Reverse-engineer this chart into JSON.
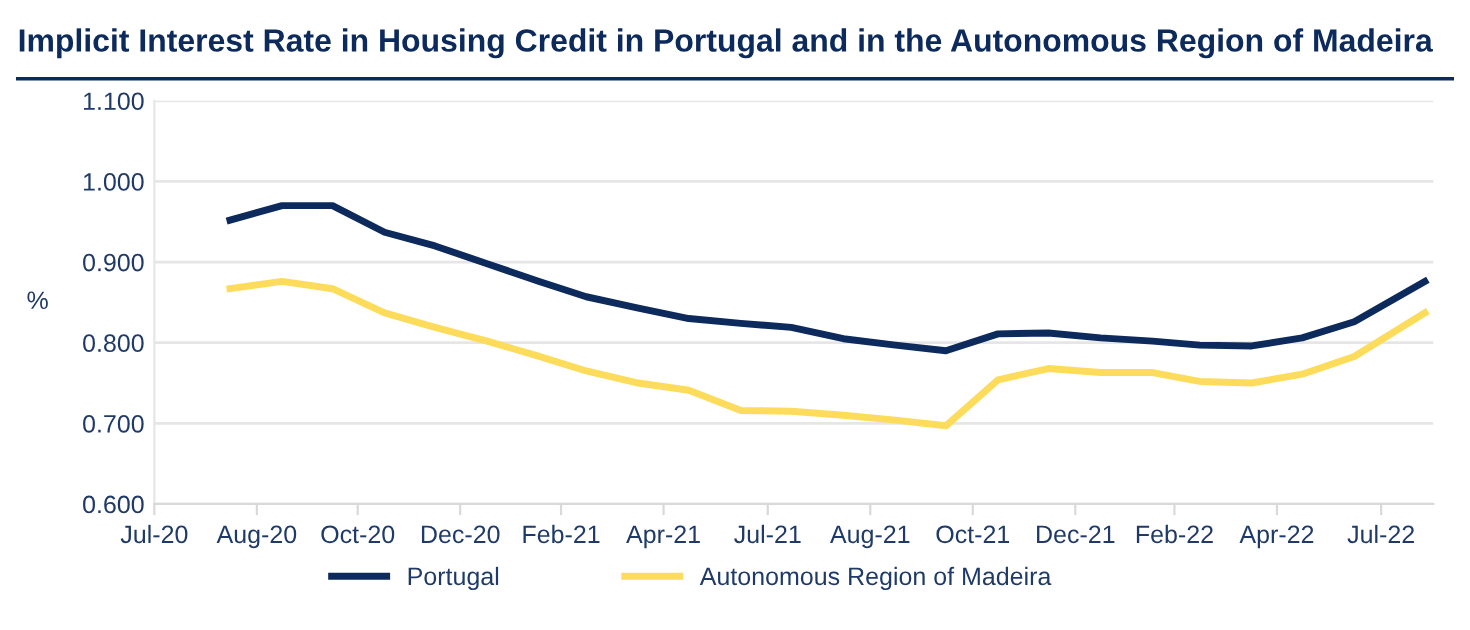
{
  "chart_data": {
    "type": "line",
    "title": "Implicit Interest Rate in Housing Credit in Portugal and in the Autonomous Region of Madeira",
    "ylabel": "%",
    "x": [
      "2020-08-15",
      "2020-09-15",
      "2020-10-15",
      "2020-11-15",
      "2020-12-15",
      "2021-01-15",
      "2021-02-15",
      "2021-03-15",
      "2021-04-15",
      "2021-05-15",
      "2021-06-15",
      "2021-07-15",
      "2021-08-15",
      "2021-09-15",
      "2021-10-15",
      "2021-11-15",
      "2021-12-15",
      "2022-01-15",
      "2022-02-15",
      "2022-03-15",
      "2022-04-15",
      "2022-05-15",
      "2022-06-15",
      "2022-07-27"
    ],
    "series": [
      {
        "name": "Portugal",
        "color": "#0d2a5c",
        "values": [
          0.952,
          0.97,
          0.97,
          0.937,
          0.92,
          0.898,
          0.876,
          0.857,
          0.843,
          0.83,
          0.824,
          0.819,
          0.805,
          0.797,
          0.79,
          0.811,
          0.812,
          0.806,
          0.802,
          0.797,
          0.796,
          0.806,
          0.826,
          0.876
        ]
      },
      {
        "name": "Autonomous Region of Madeira",
        "color": "#fcdc5a",
        "values": [
          0.867,
          0.876,
          0.867,
          0.837,
          0.819,
          0.802,
          0.783,
          0.765,
          0.75,
          0.741,
          0.716,
          0.715,
          0.71,
          0.704,
          0.697,
          0.754,
          0.768,
          0.763,
          0.763,
          0.752,
          0.75,
          0.761,
          0.783,
          0.837
        ]
      }
    ],
    "xlim": [
      "2020-07-01",
      "2022-08-01"
    ],
    "xticks": [
      {
        "value": "2020-07-01",
        "label": "Jul-20"
      },
      {
        "value": "2020-08-31",
        "label": "Aug-20"
      },
      {
        "value": "2020-10-30",
        "label": "Oct-20"
      },
      {
        "value": "2020-12-30",
        "label": "Dec-20"
      },
      {
        "value": "2021-02-28",
        "label": "Feb-21"
      },
      {
        "value": "2021-04-30",
        "label": "Apr-21"
      },
      {
        "value": "2021-07-01",
        "label": "Jul-21"
      },
      {
        "value": "2021-08-31",
        "label": "Aug-21"
      },
      {
        "value": "2021-10-31",
        "label": "Oct-21"
      },
      {
        "value": "2021-12-31",
        "label": "Dec-21"
      },
      {
        "value": "2022-02-28",
        "label": "Feb-22"
      },
      {
        "value": "2022-04-30",
        "label": "Apr-22"
      },
      {
        "value": "2022-07-01",
        "label": "Jul-22"
      }
    ],
    "ylim": [
      0.6,
      1.1
    ],
    "yticks": [
      {
        "value": 0.6,
        "label": "0.600"
      },
      {
        "value": 0.7,
        "label": "0.700"
      },
      {
        "value": 0.8,
        "label": "0.800"
      },
      {
        "value": 0.9,
        "label": "0.900"
      },
      {
        "value": 1.0,
        "label": "1.000"
      },
      {
        "value": 1.1,
        "label": "1.100"
      }
    ],
    "grid": "y",
    "legend": "bottom",
    "marker": "none",
    "line_style": "solid"
  }
}
